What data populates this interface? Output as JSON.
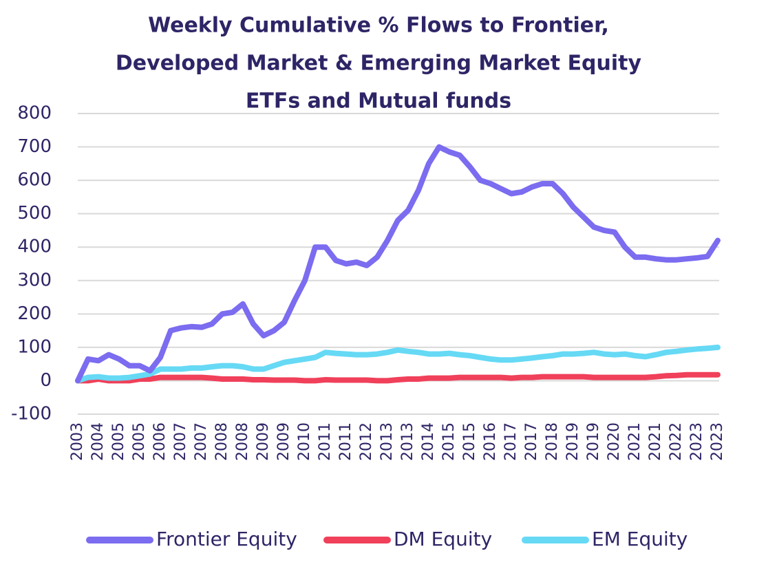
{
  "chart_data": {
    "type": "line",
    "title": [
      "Weekly Cumulative % Flows to Frontier,",
      "Developed Market & Emerging Market Equity",
      "ETFs and Mutual funds"
    ],
    "categories": [
      "2003",
      null,
      "2004",
      null,
      "2005",
      null,
      "2005",
      null,
      "2006",
      null,
      "2007",
      null,
      "2007",
      null,
      "2008",
      null,
      "2008",
      null,
      "2009",
      null,
      "2009",
      null,
      "2010",
      null,
      "2011",
      null,
      "2011",
      null,
      "2012",
      null,
      "2013",
      null,
      "2013",
      null,
      "2014",
      null,
      "2015",
      null,
      "2015",
      null,
      "2016",
      null,
      "2017",
      null,
      "2017",
      null,
      "2018",
      null,
      "2019",
      null,
      "2019",
      null,
      "2020",
      null,
      "2021",
      null,
      "2021",
      null,
      "2022",
      null,
      "2023",
      null,
      "2023"
    ],
    "series": [
      {
        "name": "Frontier Equity",
        "color": "#7b6cf0",
        "values": [
          0,
          65,
          60,
          78,
          65,
          45,
          45,
          30,
          70,
          150,
          158,
          162,
          160,
          170,
          200,
          205,
          230,
          170,
          135,
          150,
          175,
          240,
          300,
          400,
          400,
          360,
          350,
          355,
          345,
          370,
          420,
          480,
          510,
          570,
          650,
          700,
          685,
          675,
          640,
          600,
          590,
          575,
          560,
          565,
          580,
          590,
          590,
          560,
          520,
          490,
          460,
          450,
          445,
          400,
          370,
          370,
          365,
          362,
          362,
          365,
          368,
          372,
          420
        ]
      },
      {
        "name": "DM Equity",
        "color": "#f0405a",
        "values": [
          0,
          0,
          5,
          0,
          0,
          0,
          5,
          5,
          10,
          10,
          10,
          10,
          10,
          8,
          5,
          5,
          5,
          3,
          3,
          2,
          2,
          2,
          0,
          0,
          3,
          2,
          2,
          2,
          2,
          0,
          0,
          3,
          5,
          5,
          8,
          8,
          8,
          10,
          10,
          10,
          10,
          10,
          8,
          10,
          10,
          12,
          12,
          12,
          12,
          12,
          10,
          10,
          10,
          10,
          10,
          10,
          12,
          15,
          16,
          18,
          18,
          18,
          18
        ]
      },
      {
        "name": "EM Equity",
        "color": "#66d9f5",
        "values": [
          0,
          10,
          12,
          8,
          8,
          10,
          15,
          20,
          35,
          35,
          35,
          38,
          38,
          42,
          45,
          45,
          42,
          35,
          35,
          45,
          55,
          60,
          65,
          70,
          85,
          82,
          80,
          78,
          78,
          80,
          85,
          92,
          88,
          85,
          80,
          80,
          82,
          78,
          75,
          70,
          65,
          62,
          62,
          65,
          68,
          72,
          75,
          80,
          80,
          82,
          85,
          80,
          78,
          80,
          75,
          72,
          78,
          85,
          88,
          92,
          95,
          97,
          100
        ]
      }
    ],
    "ylim": [
      -100,
      800
    ],
    "yticks": [
      -100,
      0,
      100,
      200,
      300,
      400,
      500,
      600,
      700,
      800
    ],
    "grid": true,
    "legend": "bottom"
  }
}
